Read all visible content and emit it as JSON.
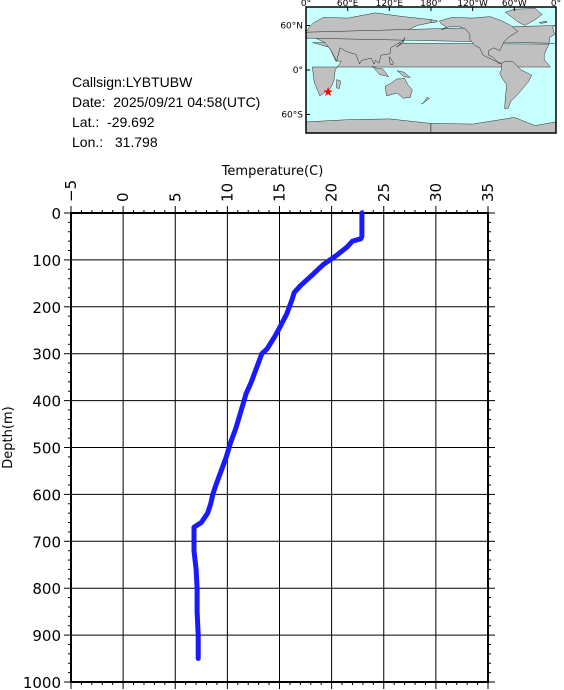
{
  "station": {
    "callsign_label": "Callsign:",
    "callsign": "LYBTUBW",
    "date_label": "Date:",
    "date": "2025/09/21 04:58(UTC)",
    "lat_label": "Lat.:",
    "lat": "-29.692",
    "lon_label": "Lon.:",
    "lon": "31.798"
  },
  "map": {
    "top_labels": [
      "0°",
      "60°E",
      "120°E",
      "180°",
      "120°W",
      "60°W",
      "0°"
    ],
    "left_labels": [
      "60°N",
      "0°",
      "60°S"
    ],
    "ocean_color": "#c8ffff",
    "land_color": "#c0c0c0",
    "marker_color": "#ff0000",
    "marker": {
      "lon": 31.798,
      "lat": -29.692
    }
  },
  "chart_data": {
    "type": "line",
    "xlabel": "Temperature(C)",
    "ylabel": "Depth(m)",
    "xlim": [
      -5,
      35
    ],
    "ylim": [
      0,
      1000
    ],
    "x_ticks": [
      -5,
      0,
      5,
      10,
      15,
      20,
      25,
      30,
      35
    ],
    "y_ticks": [
      0,
      100,
      200,
      300,
      400,
      500,
      600,
      700,
      800,
      900,
      1000
    ],
    "grid": true,
    "axis_position": "x-top",
    "y_inverted": true,
    "series_color": "#1a1aff",
    "series": [
      {
        "x": [
          22.9,
          22.9,
          22.8,
          22.0,
          21.5,
          20.5,
          19.2,
          18.0,
          17.0,
          16.4,
          16.2,
          15.7,
          15.0,
          14.5,
          13.8,
          13.3,
          12.8,
          12.3,
          11.8,
          11.6,
          11.2,
          10.8,
          10.3,
          9.9,
          9.4,
          8.9,
          8.6,
          8.4,
          8.1,
          7.5,
          6.8,
          6.8,
          7.0,
          7.1,
          7.1,
          7.2,
          7.2
        ],
        "y": [
          0,
          50,
          55,
          60,
          72,
          90,
          110,
          135,
          155,
          170,
          185,
          215,
          245,
          265,
          290,
          300,
          330,
          360,
          385,
          400,
          430,
          460,
          490,
          520,
          550,
          580,
          600,
          620,
          640,
          660,
          670,
          720,
          760,
          800,
          850,
          900,
          950
        ]
      }
    ]
  }
}
